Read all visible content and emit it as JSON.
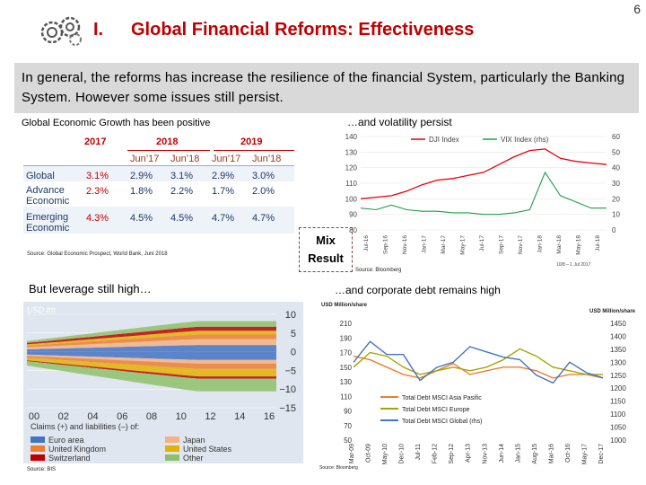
{
  "slide": {
    "number": "6",
    "section": "I.",
    "title": "Global Financial Reforms: Effectiveness"
  },
  "summary": "In general, the reforms has increase the resilience of the financial System, particularly the Banking System. However some issues still persist.",
  "captions": {
    "growth": "Global Economic Growth has been positive",
    "volatility": "…and volatility persist",
    "leverage": "But leverage still high…",
    "debt": "…and corporate debt remains high"
  },
  "sources": {
    "wb": "Source: Global Economic Prospect, World Bank, Juni 2018",
    "bb": "Source: Bloomberg",
    "bis": "Source: BIS",
    "bb2": "Source: Bloomberg",
    "vix_note": "10/8 – 1 Jul 2017"
  },
  "mix_result": {
    "line1": "Mix",
    "line2": "Result"
  },
  "growth_table": {
    "years": [
      "2017",
      "2018",
      "2019"
    ],
    "columns": [
      "Jun’17",
      "Jun’18",
      "Jun’17",
      "Jun’18"
    ],
    "rows": [
      {
        "label": "Global",
        "values": [
          "3.1%",
          "2.9%",
          "3.1%",
          "2.9%",
          "3.0%"
        ]
      },
      {
        "label": "Advance Economic",
        "values": [
          "2.3%",
          "1.8%",
          "2.2%",
          "1.7%",
          "2.0%"
        ]
      },
      {
        "label": "Emerging Economic",
        "values": [
          "4.3%",
          "4.5%",
          "4.5%",
          "4.7%",
          "4.7%"
        ]
      }
    ]
  },
  "chart_data": [
    {
      "type": "line",
      "legend": [
        "DJI Index",
        "VIX Index (rhs)"
      ],
      "left_ticks": [
        "140",
        "130",
        "120",
        "110",
        "100",
        "90",
        "80"
      ],
      "right_ticks": [
        "60",
        "50",
        "40",
        "30",
        "20",
        "10",
        "0"
      ],
      "x_ticks": [
        "Jul-16",
        "Sep-16",
        "Nov-16",
        "Jan-17",
        "Mar-17",
        "May-17",
        "Jul-17",
        "Sep-17",
        "Nov-17",
        "Jan-18",
        "Mar-18",
        "May-18",
        "Jul-18"
      ],
      "ylim": [
        80,
        140
      ],
      "y2lim": [
        0,
        60
      ],
      "colors": {
        "dji": "#e8000b",
        "vix": "#1e9e4a"
      },
      "series": [
        {
          "name": "DJI Index",
          "values": [
            100,
            101,
            102,
            105,
            109,
            112,
            113,
            115,
            117,
            122,
            127,
            131,
            132,
            126,
            124,
            123,
            122
          ]
        },
        {
          "name": "VIX Index (rhs)",
          "values": [
            14,
            13,
            16,
            13,
            12,
            12,
            11,
            11,
            10,
            10,
            11,
            13,
            37,
            22,
            18,
            14,
            14
          ]
        }
      ]
    },
    {
      "type": "area",
      "unit": "USD trn",
      "y_ticks": [
        "10",
        "5",
        "0",
        "-5",
        "-10",
        "-15"
      ],
      "x_ticks": [
        "00",
        "02",
        "04",
        "06",
        "08",
        "10",
        "12",
        "14",
        "16"
      ],
      "ylim": [
        -15,
        10
      ],
      "legend_title": "Claims (+) and liabilities (–) of:",
      "legend": [
        {
          "name": "Euro area",
          "color": "#4472c4"
        },
        {
          "name": "Japan",
          "color": "#f4b183"
        },
        {
          "name": "United Kingdom",
          "color": "#ed7d31"
        },
        {
          "name": "United States",
          "color": "#e3b200"
        },
        {
          "name": "Switzerland",
          "color": "#c00000"
        },
        {
          "name": "Other",
          "color": "#8fbf6a"
        }
      ]
    },
    {
      "type": "line",
      "left_unit": "USD Million/share",
      "right_unit": "USD Million/share",
      "left_ticks": [
        "210",
        "190",
        "170",
        "150",
        "130",
        "110",
        "90",
        "70",
        "50"
      ],
      "right_ticks": [
        "1450",
        "1400",
        "1350",
        "1300",
        "1250",
        "1200",
        "1150",
        "1100",
        "1050",
        "1000"
      ],
      "x_ticks": [
        "Mar-09",
        "Oct-09",
        "May-10",
        "Dec-10",
        "Jul-11",
        "Feb-12",
        "Sep-12",
        "Apr-13",
        "Nov-13",
        "Jun-14",
        "Jan-15",
        "Aug-15",
        "Mar-16",
        "Oct-16",
        "May-17",
        "Dec-17"
      ],
      "ylim": [
        50,
        210
      ],
      "y2lim": [
        1000,
        1450
      ],
      "series": [
        {
          "name": "Total Debt MSCI Asia Pasific",
          "color": "#ed7d31",
          "values": [
            165,
            160,
            150,
            140,
            135,
            145,
            155,
            140,
            145,
            150,
            150,
            145,
            135,
            140,
            140,
            135
          ]
        },
        {
          "name": "Total Debt MSCI Europe",
          "color": "#a5a500",
          "values": [
            150,
            170,
            165,
            150,
            140,
            145,
            150,
            145,
            150,
            160,
            175,
            165,
            150,
            145,
            140,
            140
          ]
        },
        {
          "name": "Total Debt MSCI Global (rhs)",
          "color": "#4472c4",
          "values": [
            1300,
            1380,
            1330,
            1330,
            1230,
            1280,
            1300,
            1360,
            1340,
            1320,
            1310,
            1250,
            1220,
            1300,
            1260,
            1240
          ]
        }
      ]
    }
  ]
}
